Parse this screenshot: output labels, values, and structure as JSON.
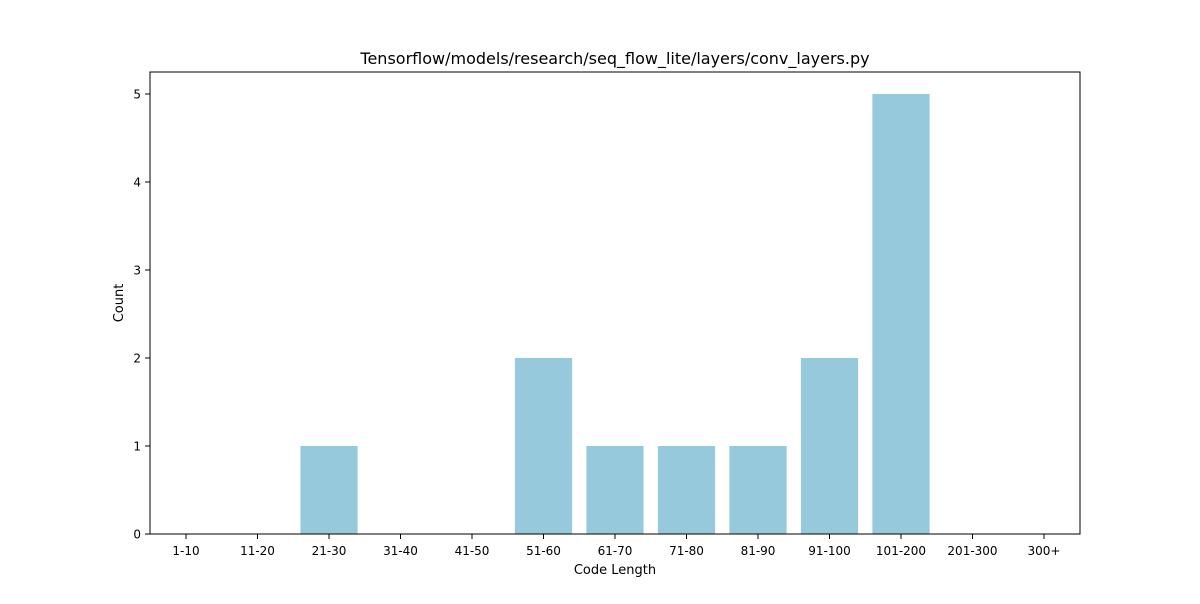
{
  "chart_data": {
    "type": "bar",
    "title": "Tensorflow/models/research/seq_flow_lite/layers/conv_layers.py",
    "xlabel": "Code Length",
    "ylabel": "Count",
    "categories": [
      "1-10",
      "11-20",
      "21-30",
      "31-40",
      "41-50",
      "51-60",
      "61-70",
      "71-80",
      "81-90",
      "91-100",
      "101-200",
      "201-300",
      "300+"
    ],
    "values": [
      0,
      0,
      1,
      0,
      0,
      2,
      1,
      1,
      1,
      2,
      5,
      0,
      0
    ],
    "ylim": [
      0,
      5.25
    ],
    "yticks": [
      0,
      1,
      2,
      3,
      4,
      5
    ],
    "grid": false,
    "legend": "none",
    "colors": {
      "bar": "#96c9dc",
      "axis": "#000000",
      "background": "#ffffff"
    }
  }
}
